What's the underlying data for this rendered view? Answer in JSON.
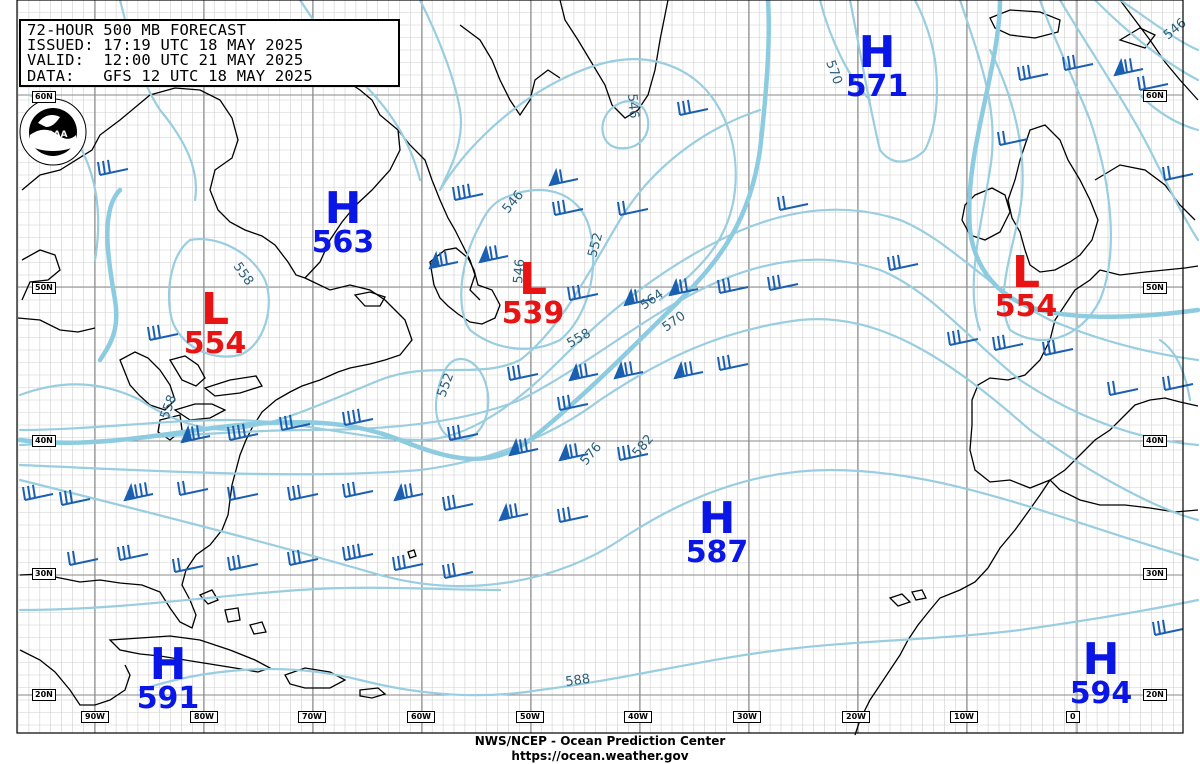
{
  "header": {
    "line1": "72-HOUR 500 MB FORECAST",
    "line2": "ISSUED: 17:19 UTC 18 MAY 2025",
    "line3": "VALID:  12:00 UTC 21 MAY 2025",
    "line4": "DATA:   GFS 12 UTC 18 MAY 2025"
  },
  "footer": {
    "line1": "NWS/NCEP - Ocean Prediction Center",
    "line2": "https://ocean.weather.gov"
  },
  "logo": {
    "text": "NOAA"
  },
  "colors": {
    "high": "#0a16e6",
    "low": "#e81414",
    "contour": "#99cde0",
    "contour_thick": "#8ccbe0",
    "wind_barb": "#1a5fb0",
    "land_outline": "#000000",
    "grid": "#c8c8c8"
  },
  "pressure_centers": [
    {
      "type": "H",
      "value": "571"
    },
    {
      "type": "H",
      "value": "563"
    },
    {
      "type": "L",
      "value": "554"
    },
    {
      "type": "L",
      "value": "539"
    },
    {
      "type": "L",
      "value": "554"
    },
    {
      "type": "H",
      "value": "587"
    },
    {
      "type": "H",
      "value": "591"
    },
    {
      "type": "H",
      "value": "594"
    }
  ],
  "contour_labels": [
    "570",
    "546",
    "546",
    "552",
    "558",
    "552",
    "564",
    "570",
    "576",
    "582",
    "588",
    "558",
    "546",
    "546",
    "558"
  ],
  "latitude_labels": [
    "60N",
    "50N",
    "40N",
    "30N",
    "20N",
    "60N",
    "50N",
    "40N",
    "30N",
    "20N"
  ],
  "longitude_labels": [
    "90W",
    "80W",
    "70W",
    "60W",
    "50W",
    "40W",
    "30W",
    "20W",
    "10W",
    "0"
  ]
}
